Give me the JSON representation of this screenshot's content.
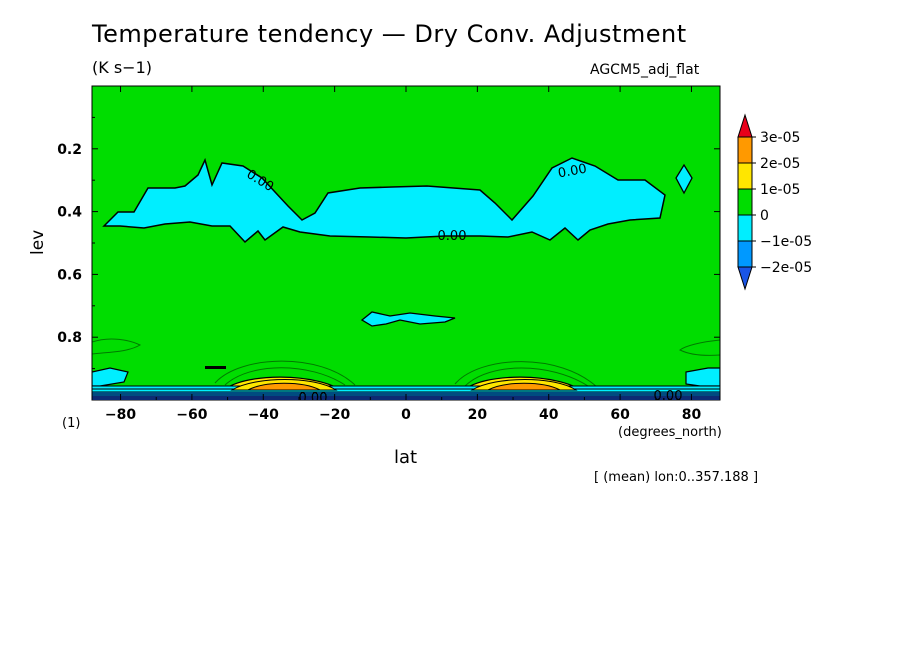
{
  "chart_data": {
    "type": "contour",
    "title": "Temperature tendency — Dry Conv. Adjustment",
    "units": "(K s−1)",
    "run_name": "AGCM5_adj_flat",
    "xlabel": "lat",
    "x_units": "(degrees_north)",
    "ylabel": "lev",
    "y_units": "(1)",
    "note": "[ (mean) lon:0..357.188 ]",
    "xlim": [
      -88,
      88
    ],
    "ylim": [
      1.0,
      0.0
    ],
    "x_ticks": [
      -80,
      -60,
      -40,
      -20,
      0,
      20,
      40,
      60,
      80
    ],
    "x_tick_labels": [
      "−80",
      "−60",
      "−40",
      "−20",
      "0",
      "20",
      "40",
      "60",
      "80"
    ],
    "y_ticks": [
      0.2,
      0.4,
      0.6,
      0.8
    ],
    "y_tick_labels": [
      "0.2",
      "0.4",
      "0.6",
      "0.8"
    ],
    "contour_labels": [
      "0.00",
      "0.00",
      "0.00",
      "0.00",
      "0.00"
    ],
    "colorbar": {
      "labels": [
        "3e-05",
        "2e-05",
        "1e-05",
        "0",
        "−1e-05",
        "−2e-05"
      ],
      "colors": [
        "#e8001a",
        "#ff9900",
        "#ffe600",
        "#00dd00",
        "#00eeff",
        "#0099ff",
        "#1a55e6"
      ]
    },
    "features": [
      {
        "name": "negative band",
        "lat_range": [
          -78,
          68
        ],
        "lev_range": [
          0.27,
          0.49
        ],
        "value": "0 to -1e-05"
      },
      {
        "name": "positive maximum SH",
        "lat": -30,
        "lev": 0.97,
        "value": "up to 3e-05"
      },
      {
        "name": "positive maximum NH",
        "lat": 30,
        "lev": 0.97,
        "value": "up to 3e-05"
      },
      {
        "name": "small negative patch",
        "lat_range": [
          -12,
          14
        ],
        "lev_range": [
          0.72,
          0.76
        ],
        "value": "0 to -1e-05"
      }
    ]
  }
}
